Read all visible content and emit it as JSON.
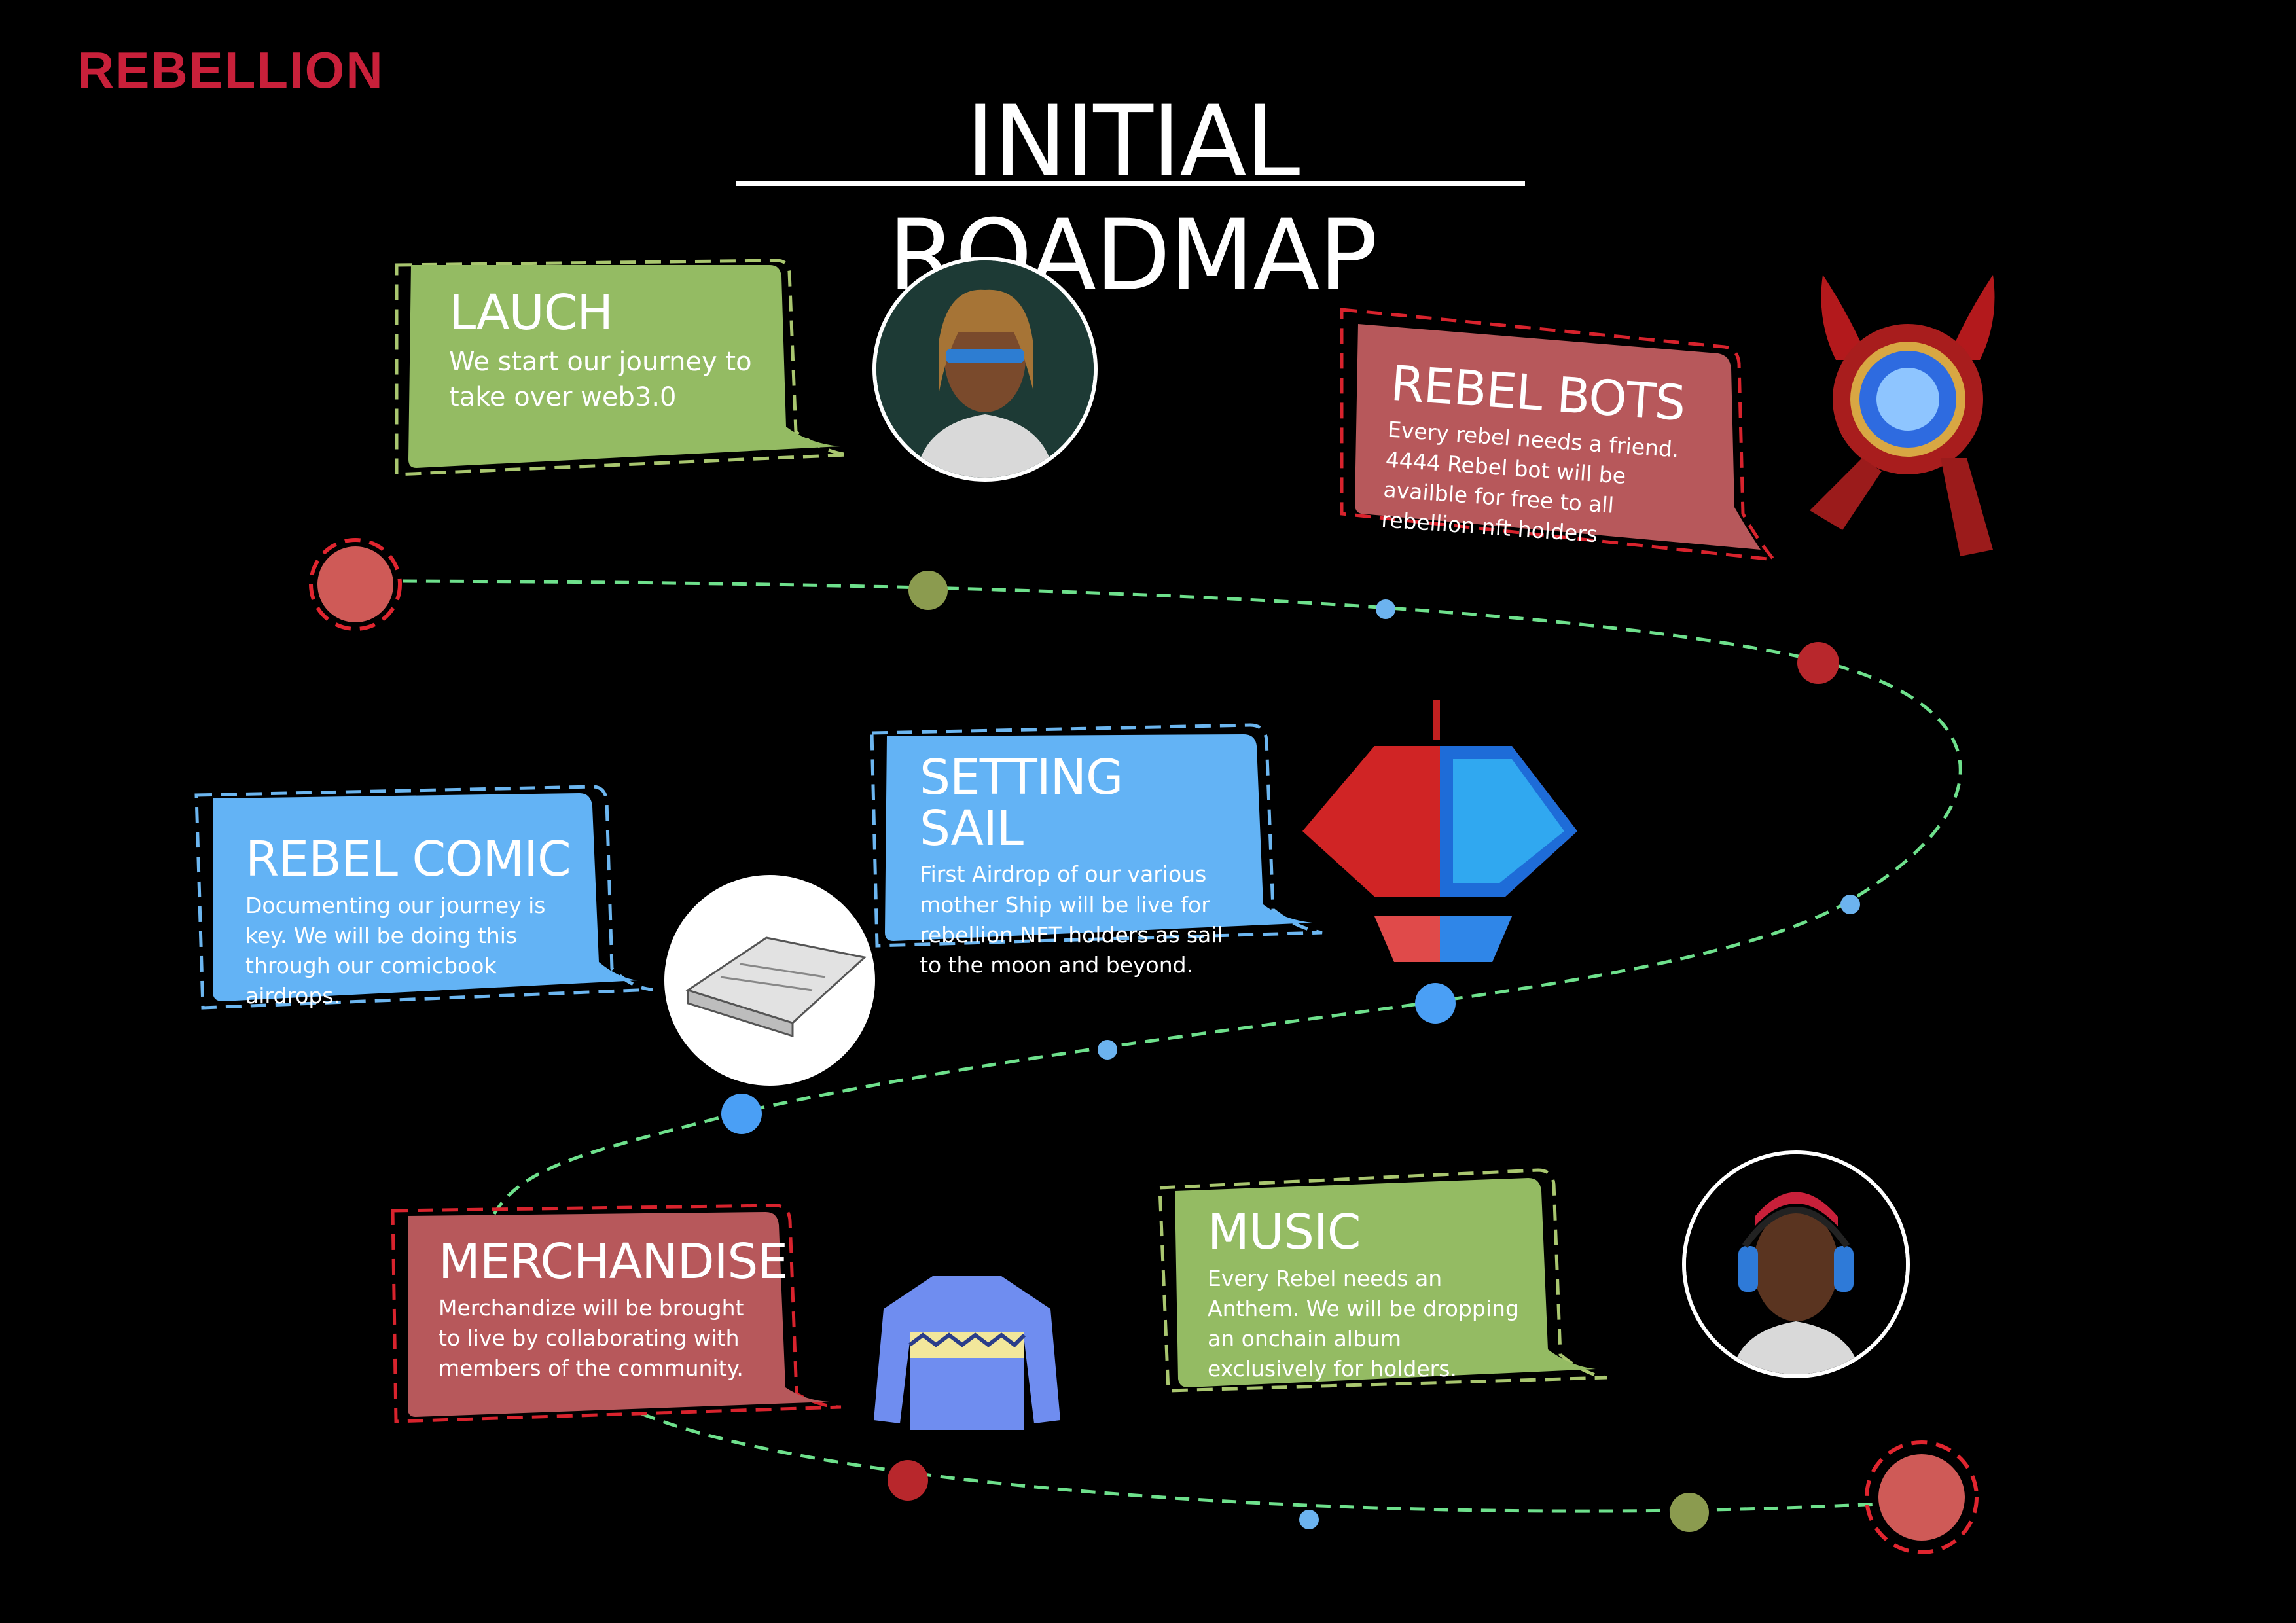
{
  "brand": "REBELLION",
  "title": "INITIAL ROADMAP",
  "colors": {
    "green": "#94bb63",
    "red": "#b7585b",
    "blue": "#63b3f5",
    "brand": "#c8203a",
    "path": "#6ee08c"
  },
  "milestones": [
    {
      "key": "launch",
      "title": "LAUCH",
      "text": "We start our journey to take over web3.0",
      "color": "green",
      "icon": "avatar-dreadlocks-icon"
    },
    {
      "key": "rebel_bots",
      "title": "REBEL BOTS",
      "text": "Every rebel needs a friend. 4444 Rebel bot will be availble for free to all rebellion nft holders",
      "color": "red",
      "icon": "robot-icon"
    },
    {
      "key": "rebel_comic",
      "title": "REBEL COMIC",
      "text": "Documenting our journey is key. We will be doing this through our comicbook airdrops.",
      "color": "blue",
      "icon": "comic-book-icon"
    },
    {
      "key": "setting_sail",
      "title": "SETTING SAIL",
      "text": "First Airdrop of our various mother Ship will be live for rebellion NFT holders as sail to the moon and beyond.",
      "color": "blue",
      "icon": "mothership-icon"
    },
    {
      "key": "merchandise",
      "title": "MERCHANDISE",
      "text": "Merchandize will be brought to live by collaborating with members of the community.",
      "color": "red",
      "icon": "sweater-icon"
    },
    {
      "key": "music",
      "title": "MUSIC",
      "text": "Every Rebel needs an Anthem. We will be dropping an onchain album exclusively for holders.",
      "color": "green",
      "icon": "avatar-headphones-icon"
    }
  ]
}
